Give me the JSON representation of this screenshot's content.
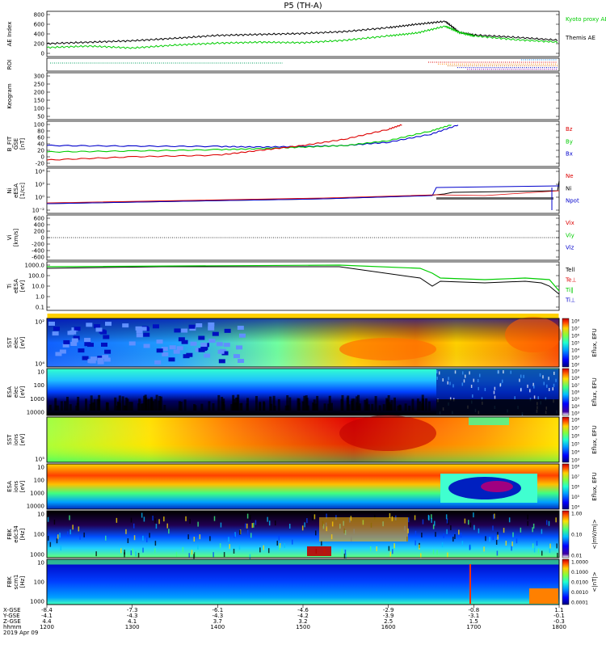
{
  "title": "P5 (TH-A)",
  "date": "2019 Apr 09",
  "colors": {
    "green": "#00cc00",
    "black": "#000000",
    "red": "#dd0000",
    "blue": "#0000cc"
  },
  "chart_data": [
    {
      "type": "line",
      "ylabel": "AE Index",
      "yticks": [
        "0",
        "200",
        "400",
        "600",
        "800"
      ],
      "ylim": [
        0,
        850
      ],
      "legend": [
        {
          "name": "Kyoto proxy AE",
          "color": "#00cc00"
        },
        {
          "name": "Themis AE",
          "color": "#000000"
        }
      ],
      "series": [
        {
          "name": "Themis AE",
          "x": [
            1200,
            1230,
            1300,
            1330,
            1400,
            1430,
            1500,
            1530,
            1600,
            1620,
            1640,
            1650,
            1700,
            1730,
            1800
          ],
          "values": [
            200,
            230,
            260,
            310,
            370,
            390,
            410,
            450,
            530,
            600,
            660,
            430,
            380,
            330,
            270
          ]
        },
        {
          "name": "Kyoto proxy AE",
          "x": [
            1200,
            1230,
            1300,
            1330,
            1400,
            1430,
            1500,
            1530,
            1600,
            1620,
            1640,
            1650,
            1700,
            1730,
            1800
          ],
          "values": [
            120,
            150,
            110,
            170,
            210,
            230,
            220,
            270,
            360,
            420,
            560,
            430,
            360,
            280,
            230
          ]
        }
      ]
    },
    {
      "type": "table",
      "ylabel": "ROI"
    },
    {
      "type": "line",
      "ylabel": "Keogram",
      "yticks": [
        "50",
        "100",
        "150",
        "200",
        "250",
        "300"
      ]
    },
    {
      "type": "line",
      "ylabel": "B_FIT GSE [nT]",
      "yticks": [
        "-20",
        "0",
        "20",
        "40",
        "60",
        "80",
        "100"
      ],
      "legend": [
        {
          "name": "Bz",
          "color": "#dd0000"
        },
        {
          "name": "By",
          "color": "#00cc00"
        },
        {
          "name": "Bx",
          "color": "#0000cc"
        }
      ],
      "series": [
        {
          "name": "Bx",
          "x": [
            1200,
            1300,
            1400,
            1430,
            1500,
            1530,
            1600,
            1630,
            1650
          ],
          "values": [
            35,
            33,
            32,
            30,
            32,
            35,
            45,
            70,
            100
          ]
        },
        {
          "name": "By",
          "x": [
            1200,
            1300,
            1400,
            1430,
            1500,
            1530,
            1600,
            1630,
            1645
          ],
          "values": [
            15,
            18,
            22,
            25,
            30,
            35,
            50,
            80,
            100
          ]
        },
        {
          "name": "Bz",
          "x": [
            1200,
            1300,
            1400,
            1430,
            1500,
            1530,
            1600,
            1610
          ],
          "values": [
            -10,
            0,
            5,
            20,
            35,
            55,
            85,
            100
          ]
        }
      ]
    },
    {
      "type": "line",
      "ylabel": "Ni eESA [1/cc]",
      "yticks": [
        "10⁻²",
        "10⁰",
        "10²",
        "10⁴"
      ],
      "legend": [
        {
          "name": "Ne",
          "color": "#dd0000"
        },
        {
          "name": "Ni",
          "color": "#000000"
        },
        {
          "name": "Npot",
          "color": "#0000cc"
        }
      ]
    },
    {
      "type": "line",
      "ylabel": "Vi [km/s]",
      "yticks": [
        "-600",
        "-400",
        "-200",
        "0",
        "200",
        "400",
        "600"
      ],
      "legend": [
        {
          "name": "Vix",
          "color": "#dd0000"
        },
        {
          "name": "Viy",
          "color": "#00cc00"
        },
        {
          "name": "Viz",
          "color": "#0000cc"
        }
      ]
    },
    {
      "type": "line",
      "ylabel": "Ti eESA [eV]",
      "yticks": [
        "0.1",
        "1.0",
        "10.0",
        "100.0",
        "1000.0"
      ],
      "legend": [
        {
          "name": "Tell",
          "color": "#000000"
        },
        {
          "name": "Te⊥",
          "color": "#dd0000"
        },
        {
          "name": "Ti‖",
          "color": "#00cc00"
        },
        {
          "name": "Ti⊥",
          "color": "#0000cc"
        }
      ]
    },
    {
      "type": "heatmap",
      "ylabel": "SST elec [eV]",
      "yticks": [
        "10⁴",
        "10²"
      ],
      "cbar_label": "Eflux, EFU",
      "cbar_ticks": [
        "10⁸",
        "10⁷",
        "10⁶",
        "10⁵",
        "10⁴",
        "10³",
        "10²"
      ]
    },
    {
      "type": "heatmap",
      "ylabel": "ESA elec [eV]",
      "yticks": [
        "10000",
        "1000",
        "100",
        "10"
      ],
      "cbar_label": "Eflux, EFU",
      "cbar_ticks": [
        "10⁹",
        "10⁸",
        "10⁷",
        "10⁶",
        "10⁵",
        "10⁴",
        "10³"
      ]
    },
    {
      "type": "heatmap",
      "ylabel": "SST ions [eV]",
      "yticks": [
        "10⁵"
      ],
      "cbar_label": "Eflux, EFU",
      "cbar_ticks": [
        "10⁸",
        "10⁷",
        "10⁶",
        "10⁵",
        "10⁴",
        "10³"
      ]
    },
    {
      "type": "heatmap",
      "ylabel": "ESA ions [eV]",
      "yticks": [
        "10000",
        "1000",
        "100",
        "10"
      ],
      "cbar_label": "Eflux, EFU",
      "cbar_ticks": [
        "10⁸",
        "10⁷",
        "10⁶",
        "10⁵",
        "10⁴"
      ]
    },
    {
      "type": "heatmap",
      "ylabel": "FBK edc34 [Hz]",
      "yticks": [
        "1000",
        "100",
        "10"
      ],
      "cbar_label": "<|mV/m|>",
      "cbar_ticks": [
        "1.00",
        "0.10",
        "0.01"
      ]
    },
    {
      "type": "heatmap",
      "ylabel": "FBK scm1 [Hz]",
      "yticks": [
        "1000",
        "100",
        "10"
      ],
      "cbar_label": "<|nT|>",
      "cbar_ticks": [
        "1.0000",
        "0.1000",
        "0.0100",
        "0.0010",
        "0.0001"
      ]
    }
  ],
  "xaxis": {
    "rows": [
      {
        "label": "X-GSE",
        "values": [
          "-8.4",
          "-7.3",
          "-6.1",
          "-4.6",
          "-2.9",
          "-0.8",
          "1.1"
        ]
      },
      {
        "label": "Y-GSE",
        "values": [
          "-4.1",
          "-4.3",
          "-4.3",
          "-4.2",
          "-3.9",
          "-3.1",
          "-0.1"
        ]
      },
      {
        "label": "Z-GSE",
        "values": [
          "4.4",
          "4.1",
          "3.7",
          "3.2",
          "2.5",
          "1.5",
          "-0.3"
        ]
      },
      {
        "label": "hhmm",
        "values": [
          "1200",
          "1300",
          "1400",
          "1500",
          "1600",
          "1700",
          "1800"
        ]
      }
    ]
  }
}
